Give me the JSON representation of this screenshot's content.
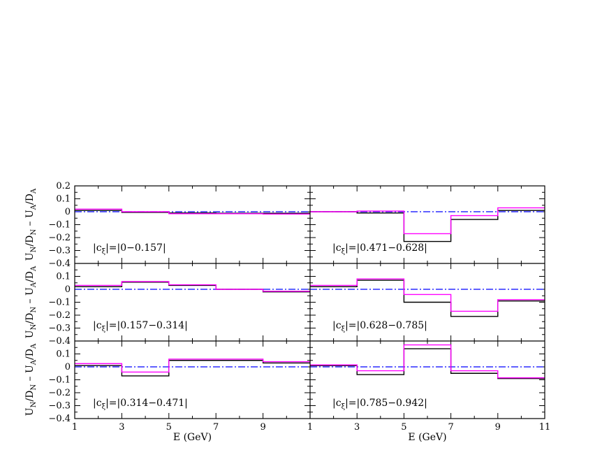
{
  "chart_data": [
    {
      "type": "step",
      "panel": "top-left",
      "annotation": "|c_ξ|=|0–0.157|",
      "xlim": [
        1,
        11
      ],
      "ylim": [
        -0.4,
        0.2
      ],
      "bin_edges": [
        1,
        3,
        5,
        7,
        9,
        11
      ],
      "series": [
        {
          "color": "#000000",
          "values": [
            0.01,
            -0.005,
            -0.01,
            -0.012,
            -0.012
          ]
        },
        {
          "color": "#ff00ff",
          "values": [
            0.02,
            0.0,
            -0.015,
            -0.015,
            -0.018
          ]
        }
      ],
      "reference_line": {
        "y": 0,
        "color": "#0000ff",
        "style": "dash-dot"
      }
    },
    {
      "type": "step",
      "panel": "top-right",
      "annotation": "|c_ξ|=|0.471–0.628|",
      "xlim": [
        1,
        11
      ],
      "ylim": [
        -0.4,
        0.2
      ],
      "bin_edges": [
        1,
        3,
        5,
        7,
        9,
        11
      ],
      "series": [
        {
          "color": "#000000",
          "values": [
            0.0,
            -0.01,
            -0.23,
            -0.06,
            0.01
          ]
        },
        {
          "color": "#ff00ff",
          "values": [
            0.0,
            0.005,
            -0.17,
            -0.03,
            0.03
          ]
        }
      ],
      "reference_line": {
        "y": 0,
        "color": "#0000ff",
        "style": "dash-dot"
      }
    },
    {
      "type": "step",
      "panel": "middle-left",
      "annotation": "|c_ξ|=|0.157–0.314|",
      "xlim": [
        1,
        11
      ],
      "ylim": [
        -0.4,
        0.2
      ],
      "bin_edges": [
        1,
        3,
        5,
        7,
        9,
        11
      ],
      "series": [
        {
          "color": "#000000",
          "values": [
            0.02,
            0.055,
            0.03,
            0.0,
            -0.02
          ]
        },
        {
          "color": "#ff00ff",
          "values": [
            0.03,
            0.06,
            0.035,
            0.0,
            -0.015
          ]
        }
      ],
      "reference_line": {
        "y": 0,
        "color": "#0000ff",
        "style": "dash-dot"
      }
    },
    {
      "type": "step",
      "panel": "middle-right",
      "annotation": "|c_ξ|=|0.628–0.785|",
      "xlim": [
        1,
        11
      ],
      "ylim": [
        -0.4,
        0.2
      ],
      "bin_edges": [
        1,
        3,
        5,
        7,
        9,
        11
      ],
      "series": [
        {
          "color": "#000000",
          "values": [
            0.02,
            0.07,
            -0.1,
            -0.21,
            -0.09
          ]
        },
        {
          "color": "#ff00ff",
          "values": [
            0.03,
            0.08,
            -0.04,
            -0.17,
            -0.08
          ]
        }
      ],
      "reference_line": {
        "y": 0,
        "color": "#0000ff",
        "style": "dash-dot"
      }
    },
    {
      "type": "step",
      "panel": "bottom-left",
      "annotation": "|c_ξ|=|0.314–0.471|",
      "xlim": [
        1,
        11
      ],
      "ylim": [
        -0.4,
        0.2
      ],
      "bin_edges": [
        1,
        3,
        5,
        7,
        9,
        11
      ],
      "series": [
        {
          "color": "#000000",
          "values": [
            0.01,
            -0.07,
            0.05,
            0.05,
            0.03
          ]
        },
        {
          "color": "#ff00ff",
          "values": [
            0.025,
            -0.04,
            0.06,
            0.06,
            0.04
          ]
        }
      ],
      "reference_line": {
        "y": 0,
        "color": "#0000ff",
        "style": "dash-dot"
      }
    },
    {
      "type": "step",
      "panel": "bottom-right",
      "annotation": "|c_ξ|=|0.785–0.942|",
      "xlim": [
        1,
        11
      ],
      "ylim": [
        -0.4,
        0.2
      ],
      "bin_edges": [
        1,
        3,
        5,
        7,
        9,
        11
      ],
      "series": [
        {
          "color": "#000000",
          "values": [
            0.01,
            -0.06,
            0.14,
            -0.05,
            -0.09
          ]
        },
        {
          "color": "#ff00ff",
          "values": [
            0.015,
            -0.03,
            0.17,
            -0.03,
            -0.085
          ]
        }
      ],
      "reference_line": {
        "y": 0,
        "color": "#0000ff",
        "style": "dash-dot"
      }
    }
  ],
  "axes": {
    "y_label_parts": [
      "U",
      "N",
      "/D",
      "N",
      " – U",
      "A",
      "/D",
      "A"
    ],
    "x_label": "E (GeV)",
    "y_ticks": [
      "0.2",
      "0.1",
      "0",
      "−0.1",
      "−0.2",
      "−0.3",
      "−0.4"
    ],
    "y_ticks_bottom": [
      "0.1",
      "0",
      "−0.1",
      "−0.2",
      "−0.3",
      "−0.4"
    ],
    "y_tick_values": [
      0.2,
      0.1,
      0,
      -0.1,
      -0.2,
      -0.3,
      -0.4
    ],
    "x_ticks_left": [
      "1",
      "3",
      "5",
      "7",
      "9",
      "1"
    ],
    "x_ticks_right": [
      "3",
      "5",
      "7",
      "9",
      "11"
    ],
    "x_tick_values_left": [
      1,
      3,
      5,
      7,
      9,
      11
    ],
    "x_tick_values_right": [
      3,
      5,
      7,
      9,
      11
    ],
    "label_prefix": "|c",
    "label_subscript": "ξ",
    "label_mid": "|=|"
  },
  "label_ranges": {
    "top-left": "0−0.157|",
    "top-right": "0.471−0.628|",
    "middle-left": "0.157−0.314|",
    "middle-right": "0.628−0.785|",
    "bottom-left": "0.314−0.471|",
    "bottom-right": "0.785−0.942|"
  },
  "colors": {
    "axis": "#000000",
    "series_black": "#000000",
    "series_magenta": "#ff00ff",
    "reference": "#0000ff"
  }
}
